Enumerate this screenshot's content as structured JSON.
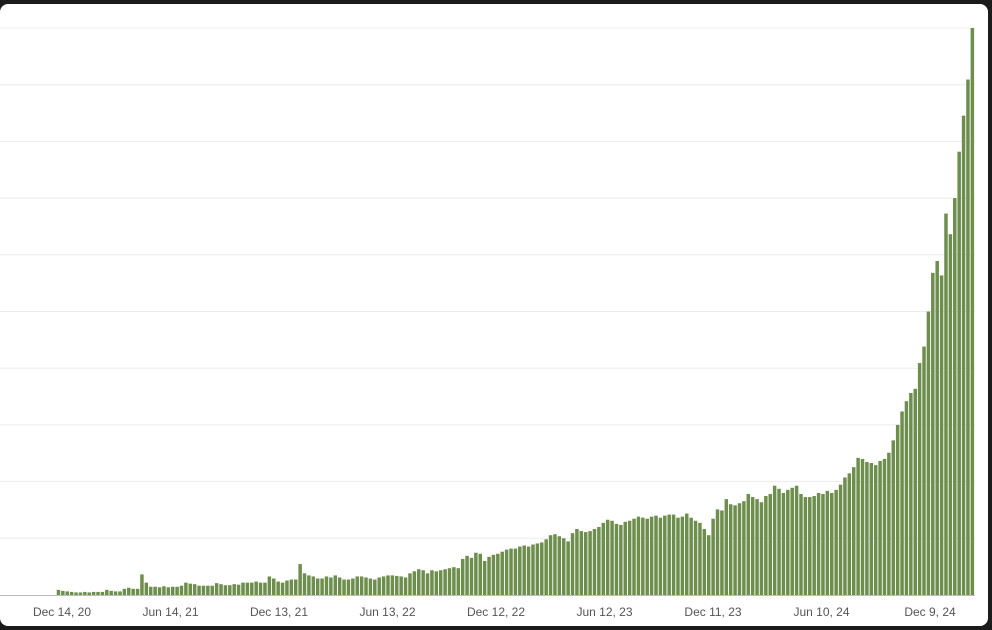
{
  "colors": {
    "background": "#ffffff",
    "frame": "#1b1b1b",
    "bar": "#6e8e4e",
    "grid": "#ececec",
    "axis": "#bdbdbd",
    "tick_text": "#555555"
  },
  "chart_data": {
    "type": "bar",
    "title": "",
    "xlabel": "",
    "ylabel": "",
    "grid": true,
    "legend": "none",
    "x_tick_labels": [
      "Dec 14, 20",
      "Jun 14, 21",
      "Dec 13, 21",
      "Jun 13, 22",
      "Dec 12, 22",
      "Jun 12, 23",
      "Dec 11, 23",
      "Jun 10, 24",
      "Dec 9, 24"
    ],
    "y_tick_count": 11,
    "ylim": [
      0,
      1100
    ],
    "values": [
      0,
      0,
      0,
      0,
      0,
      0,
      0,
      0,
      0,
      0,
      0,
      0,
      10,
      8,
      7,
      6,
      5,
      5,
      6,
      5,
      6,
      6,
      6,
      10,
      8,
      7,
      7,
      12,
      14,
      12,
      12,
      40,
      24,
      16,
      16,
      15,
      17,
      15,
      16,
      16,
      18,
      24,
      22,
      21,
      18,
      18,
      18,
      18,
      23,
      21,
      19,
      19,
      21,
      20,
      24,
      24,
      24,
      26,
      24,
      24,
      36,
      32,
      26,
      24,
      28,
      30,
      30,
      60,
      42,
      38,
      36,
      32,
      32,
      36,
      34,
      38,
      34,
      30,
      30,
      32,
      36,
      36,
      34,
      32,
      30,
      34,
      36,
      38,
      38,
      37,
      36,
      34,
      42,
      46,
      50,
      48,
      42,
      48,
      46,
      48,
      50,
      52,
      54,
      52,
      70,
      76,
      72,
      82,
      80,
      66,
      74,
      78,
      80,
      84,
      88,
      90,
      90,
      94,
      96,
      94,
      98,
      100,
      102,
      108,
      116,
      118,
      114,
      110,
      104,
      120,
      128,
      124,
      122,
      124,
      128,
      132,
      140,
      146,
      144,
      138,
      136,
      142,
      144,
      148,
      152,
      150,
      148,
      152,
      154,
      150,
      154,
      156,
      156,
      150,
      152,
      158,
      150,
      144,
      140,
      128,
      116,
      148,
      166,
      164,
      186,
      176,
      174,
      178,
      182,
      196,
      190,
      186,
      180,
      192,
      196,
      212,
      206,
      198,
      204,
      208,
      212,
      196,
      190,
      190,
      192,
      198,
      196,
      202,
      198,
      204,
      214,
      228,
      236,
      248,
      266,
      264,
      258,
      256,
      252,
      260,
      264,
      276,
      300,
      330,
      356,
      376,
      392,
      400,
      450,
      482,
      550,
      625,
      648,
      620,
      740,
      700,
      770,
      860,
      930,
      1000,
      1100
    ]
  }
}
